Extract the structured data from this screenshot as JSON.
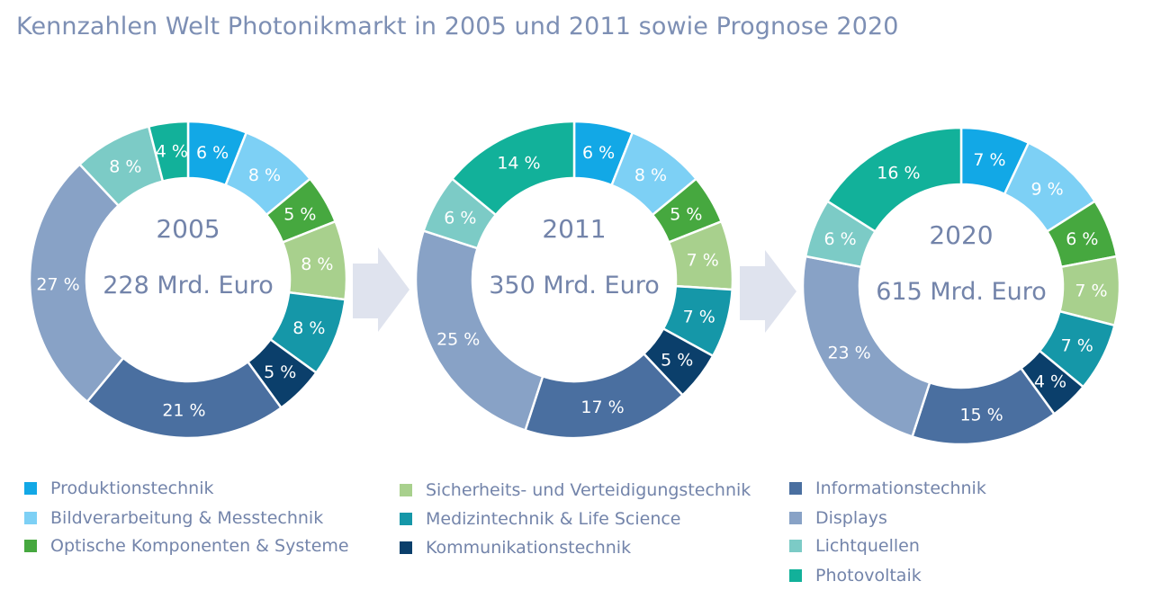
{
  "title": "Kennzahlen Welt Photonikmarkt in 2005 und 2011 sowie Prognose 2020",
  "colors": {
    "Produktionstechnik": "#12a8e6",
    "Bildverarbeitung & Messtechnik": "#7dd0f5",
    "Optische Komponenten & Systeme": "#46a83f",
    "Sicherheits- und Verteidigungstechnik": "#a8d08d",
    "Medizintechnik & Life Science": "#1597a8",
    "Kommunikationstechnik": "#0b3f6b",
    "Informationstechnik": "#4a6fa0",
    "Displays": "#88a2c6",
    "Lichtquellen": "#7ccbc6",
    "Photovoltaik": "#12b19a"
  },
  "chart_data": [
    {
      "type": "pie",
      "donut": true,
      "year": "2005",
      "total": "228 Mrd. Euro",
      "categories": [
        "Produktionstechnik",
        "Bildverarbeitung & Messtechnik",
        "Optische Komponenten & Systeme",
        "Sicherheits- und Verteidigungstechnik",
        "Medizintechnik & Life Science",
        "Kommunikationstechnik",
        "Informationstechnik",
        "Displays",
        "Lichtquellen",
        "Photovoltaik"
      ],
      "values": [
        6,
        8,
        5,
        8,
        8,
        5,
        21,
        27,
        8,
        4
      ],
      "labels": [
        "6 %",
        "8 %",
        "5 %",
        "8 %",
        "8 %",
        "5 %",
        "21 %",
        "27 %",
        "8 %",
        "4 %"
      ]
    },
    {
      "type": "pie",
      "donut": true,
      "year": "2011",
      "total": "350 Mrd. Euro",
      "categories": [
        "Produktionstechnik",
        "Bildverarbeitung & Messtechnik",
        "Optische Komponenten & Systeme",
        "Sicherheits- und Verteidigungstechnik",
        "Medizintechnik & Life Science",
        "Kommunikationstechnik",
        "Informationstechnik",
        "Displays",
        "Lichtquellen",
        "Photovoltaik"
      ],
      "values": [
        6,
        8,
        5,
        7,
        7,
        5,
        17,
        25,
        6,
        14
      ],
      "labels": [
        "6 %",
        "8 %",
        "5 %",
        "7 %",
        "7 %",
        "5 %",
        "17 %",
        "25 %",
        "6 %",
        "14 %"
      ]
    },
    {
      "type": "pie",
      "donut": true,
      "year": "2020",
      "total": "615 Mrd. Euro",
      "categories": [
        "Produktionstechnik",
        "Bildverarbeitung & Messtechnik",
        "Optische Komponenten & Systeme",
        "Sicherheits- und Verteidigungstechnik",
        "Medizintechnik & Life Science",
        "Kommunikationstechnik",
        "Informationstechnik",
        "Displays",
        "Lichtquellen",
        "Photovoltaik"
      ],
      "values": [
        7,
        9,
        6,
        7,
        7,
        4,
        15,
        23,
        6,
        16
      ],
      "labels": [
        "7 %",
        "9 %",
        "6 %",
        "7 %",
        "7 %",
        "4 %",
        "15 %",
        "23 %",
        "6 %",
        "16 %"
      ]
    }
  ],
  "legend": [
    "Produktionstechnik",
    "Bildverarbeitung & Messtechnik",
    "Optische Komponenten & Systeme",
    "Sicherheits- und Verteidigungstechnik",
    "Medizintechnik & Life Science",
    "Kommunikationstechnik",
    "Informationstechnik",
    "Displays",
    "Lichtquellen",
    "Photovoltaik"
  ]
}
